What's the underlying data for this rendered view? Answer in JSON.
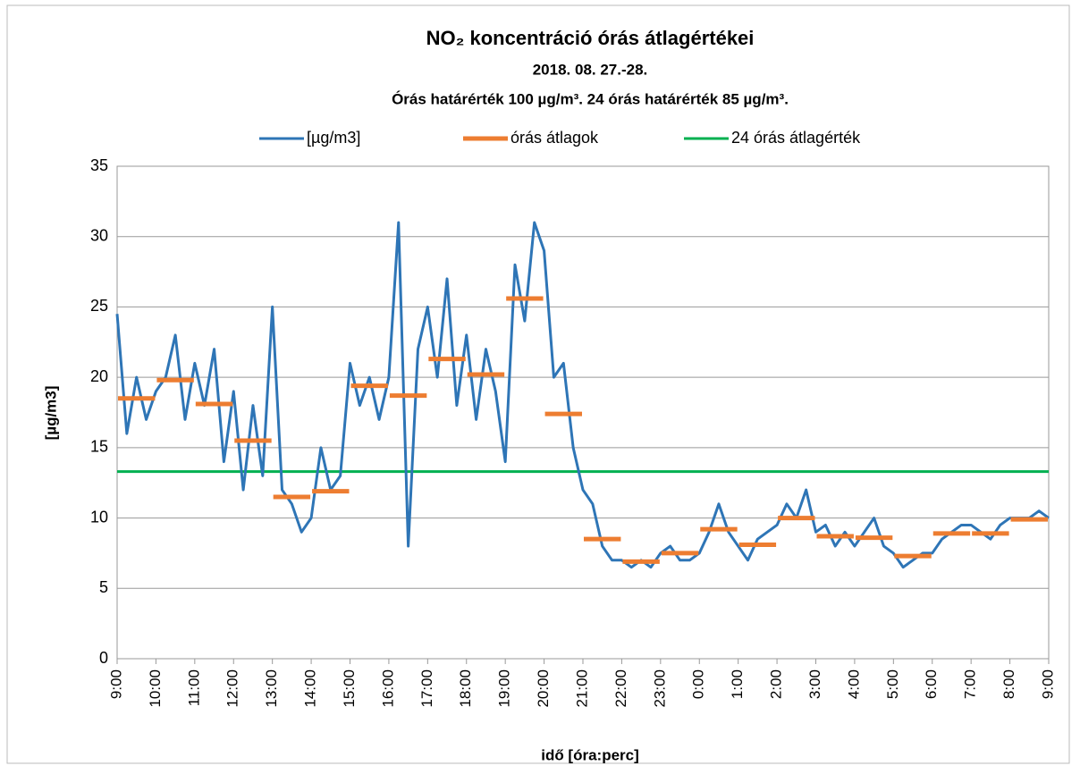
{
  "chart_data": {
    "type": "line",
    "title": "NO₂ koncentráció órás átlagértékei",
    "subtitle": "2018. 08. 27.-28.",
    "subtitle2": "Órás határérték 100 µg/m³.  24 órás határérték 85 µg/m³.",
    "xlabel": "idő [óra:perc]",
    "ylabel": "[µg/m3]",
    "ylim": [
      0,
      35
    ],
    "yticks": [
      0,
      5,
      10,
      15,
      20,
      25,
      30,
      35
    ],
    "xlim": [
      0,
      24
    ],
    "xticks": [
      {
        "value": 0,
        "label": "9:00"
      },
      {
        "value": 1,
        "label": "10:00"
      },
      {
        "value": 2,
        "label": "11:00"
      },
      {
        "value": 3,
        "label": "12:00"
      },
      {
        "value": 4,
        "label": "13:00"
      },
      {
        "value": 5,
        "label": "14:00"
      },
      {
        "value": 6,
        "label": "15:00"
      },
      {
        "value": 7,
        "label": "16:00"
      },
      {
        "value": 8,
        "label": "17:00"
      },
      {
        "value": 9,
        "label": "18:00"
      },
      {
        "value": 10,
        "label": "19:00"
      },
      {
        "value": 11,
        "label": "20:00"
      },
      {
        "value": 12,
        "label": "21:00"
      },
      {
        "value": 13,
        "label": "22:00"
      },
      {
        "value": 14,
        "label": "23:00"
      },
      {
        "value": 15,
        "label": "0:00"
      },
      {
        "value": 16,
        "label": "1:00"
      },
      {
        "value": 17,
        "label": "2:00"
      },
      {
        "value": 18,
        "label": "3:00"
      },
      {
        "value": 19,
        "label": "4:00"
      },
      {
        "value": 20,
        "label": "5:00"
      },
      {
        "value": 21,
        "label": "6:00"
      },
      {
        "value": 22,
        "label": "7:00"
      },
      {
        "value": 23,
        "label": "8:00"
      },
      {
        "value": 24,
        "label": "9:00"
      }
    ],
    "grid": true,
    "legend": "top",
    "series": [
      {
        "name": "[µg/m3]",
        "color": "#2e75b6",
        "x": [
          0,
          0.25,
          0.5,
          0.75,
          1,
          1.25,
          1.5,
          1.75,
          2,
          2.25,
          2.5,
          2.75,
          3,
          3.25,
          3.5,
          3.75,
          4,
          4.25,
          4.5,
          4.75,
          5,
          5.25,
          5.5,
          5.75,
          6,
          6.25,
          6.5,
          6.75,
          7,
          7.25,
          7.5,
          7.75,
          8,
          8.25,
          8.5,
          8.75,
          9,
          9.25,
          9.5,
          9.75,
          10,
          10.25,
          10.5,
          10.75,
          11,
          11.25,
          11.5,
          11.75,
          12,
          12.25,
          12.5,
          12.75,
          13,
          13.25,
          13.5,
          13.75,
          14,
          14.25,
          14.5,
          14.75,
          15,
          15.25,
          15.5,
          15.75,
          16,
          16.25,
          16.5,
          16.75,
          17,
          17.25,
          17.5,
          17.75,
          18,
          18.25,
          18.5,
          18.75,
          19,
          19.25,
          19.5,
          19.75,
          20,
          20.25,
          20.5,
          20.75,
          21,
          21.25,
          21.5,
          21.75,
          22,
          22.25,
          22.5,
          22.75,
          23,
          23.25,
          23.5,
          23.75,
          24
        ],
        "values": [
          24.5,
          16,
          20,
          17,
          19,
          20,
          23,
          17,
          21,
          18,
          22,
          14,
          19,
          12,
          18,
          13,
          25,
          12,
          11,
          9,
          10,
          15,
          12,
          13,
          21,
          18,
          20,
          17,
          20,
          31,
          8,
          22,
          25,
          20,
          27,
          18,
          23,
          17,
          22,
          19,
          14,
          28,
          24,
          31,
          29,
          20,
          21,
          15,
          12,
          11,
          8,
          7,
          7,
          6.5,
          7,
          6.5,
          7.5,
          8,
          7,
          7,
          7.5,
          9,
          11,
          9,
          8,
          7,
          8.5,
          9,
          9.5,
          11,
          10,
          12,
          9,
          9.5,
          8,
          9,
          8,
          9,
          10,
          8,
          7.5,
          6.5,
          7,
          7.5,
          7.5,
          8.5,
          9,
          9.5,
          9.5,
          9,
          8.5,
          9.5,
          10,
          10,
          10,
          10.5,
          10
        ]
      },
      {
        "name": "órás átlagok",
        "color": "#ed7d31",
        "values": [
          18.5,
          19.8,
          18.1,
          15.5,
          11.5,
          11.9,
          19.4,
          18.7,
          21.3,
          20.2,
          25.6,
          17.4,
          8.5,
          6.9,
          7.5,
          9.2,
          8.1,
          10.0,
          8.7,
          8.6,
          7.3,
          8.9,
          8.9,
          9.9
        ]
      },
      {
        "name": "24 órás átlagérték",
        "color": "#00b050",
        "value": 13.3
      }
    ]
  }
}
